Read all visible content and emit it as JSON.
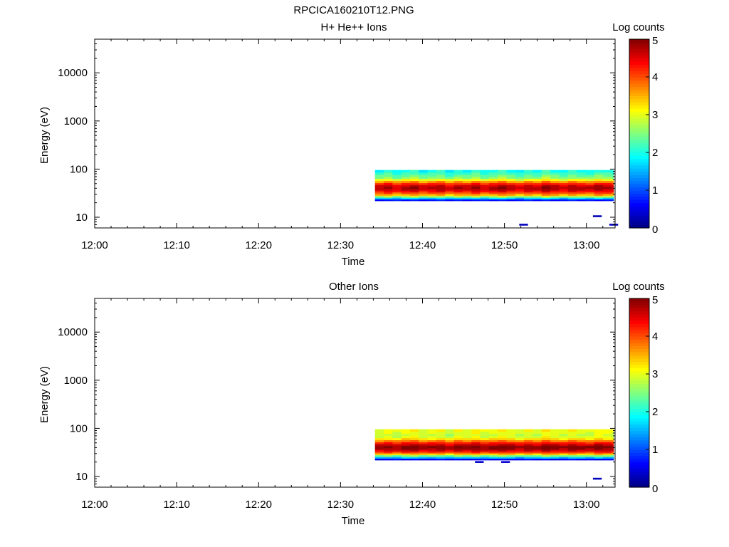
{
  "figure_title": "RPCICA160210T12.PNG",
  "colors": {
    "axis": "#000000",
    "background": "#ffffff",
    "colormap": [
      "#00007f",
      "#0000ff",
      "#007fff",
      "#00ffff",
      "#7fff7f",
      "#ffff00",
      "#ff7f00",
      "#ff0000",
      "#7f0000"
    ]
  },
  "chart_data": [
    {
      "type": "heatmap",
      "title": "H+ He++ Ions",
      "xlabel": "Time",
      "ylabel": "Energy (eV)",
      "colorbar_label": "Log counts",
      "colorbar_range": [
        0,
        5
      ],
      "colorbar_ticks": [
        "0",
        "1",
        "2",
        "3",
        "4",
        "5"
      ],
      "x_ticks": [
        "12:00",
        "12:10",
        "12:20",
        "12:30",
        "12:40",
        "12:50",
        "13:00"
      ],
      "x_range_min": [
        0,
        63.5
      ],
      "y_scale": "log",
      "y_range": [
        6,
        50000
      ],
      "y_ticks": [
        "10",
        "100",
        "1000",
        "10000"
      ],
      "data_start_min": 34.2,
      "data_end_min": 63.3,
      "time_bin_min": 1.07,
      "energy_bins_eV": [
        23,
        25,
        27,
        29.5,
        32,
        35,
        38,
        42,
        46,
        50,
        55,
        61,
        67,
        74,
        82,
        91
      ],
      "profile_log_counts": [
        0.7,
        1.6,
        2.6,
        3.4,
        3.9,
        4.3,
        4.6,
        4.7,
        4.5,
        4.1,
        3.6,
        3.0,
        2.5,
        2.3,
        2.1,
        1.9
      ],
      "time_variation": [
        0.0,
        0.15,
        -0.1,
        0.1,
        0.2,
        -0.05,
        0.05,
        0.15,
        -0.1,
        0.1,
        0.0,
        0.2,
        -0.05,
        0.1,
        0.25,
        0.05,
        -0.1,
        0.1,
        0.0,
        0.3,
        0.1,
        -0.05,
        0.15,
        0.05,
        0.0,
        0.2,
        0.1
      ],
      "isolated_bins": [
        {
          "t_min": 51.8,
          "e_eV": 7,
          "log_counts": 0.3
        },
        {
          "t_min": 60.8,
          "e_eV": 10.5,
          "log_counts": 0.3
        },
        {
          "t_min": 62.8,
          "e_eV": 7,
          "log_counts": 0.3
        }
      ]
    },
    {
      "type": "heatmap",
      "title": "Other Ions",
      "xlabel": "Time",
      "ylabel": "Energy (eV)",
      "colorbar_label": "Log counts",
      "colorbar_range": [
        0,
        5
      ],
      "colorbar_ticks": [
        "0",
        "1",
        "2",
        "3",
        "4",
        "5"
      ],
      "x_ticks": [
        "12:00",
        "12:10",
        "12:20",
        "12:30",
        "12:40",
        "12:50",
        "13:00"
      ],
      "x_range_min": [
        0,
        63.5
      ],
      "y_scale": "log",
      "y_range": [
        6,
        50000
      ],
      "y_ticks": [
        "10",
        "100",
        "1000",
        "10000"
      ],
      "data_start_min": 34.2,
      "data_end_min": 63.3,
      "time_bin_min": 1.07,
      "energy_bins_eV": [
        23,
        25,
        27,
        29.5,
        32,
        35,
        38,
        42,
        46,
        50,
        55,
        61,
        67,
        74,
        82,
        91
      ],
      "profile_log_counts": [
        0.6,
        1.5,
        2.4,
        3.3,
        4.0,
        4.5,
        4.8,
        4.9,
        4.6,
        4.2,
        3.7,
        3.2,
        2.9,
        2.8,
        2.9,
        3.0
      ],
      "time_variation": [
        0.0,
        0.1,
        -0.05,
        0.15,
        0.2,
        0.0,
        0.05,
        0.1,
        -0.1,
        0.15,
        0.05,
        0.2,
        0.0,
        0.1,
        0.2,
        0.1,
        -0.05,
        0.1,
        0.0,
        0.25,
        0.1,
        0.0,
        0.15,
        0.05,
        0.0,
        0.2,
        0.1
      ],
      "isolated_bins": [
        {
          "t_min": 46.4,
          "e_eV": 20,
          "log_counts": 0.4
        },
        {
          "t_min": 49.6,
          "e_eV": 20,
          "log_counts": 0.4
        },
        {
          "t_min": 60.8,
          "e_eV": 9,
          "log_counts": 0.3
        }
      ]
    }
  ]
}
